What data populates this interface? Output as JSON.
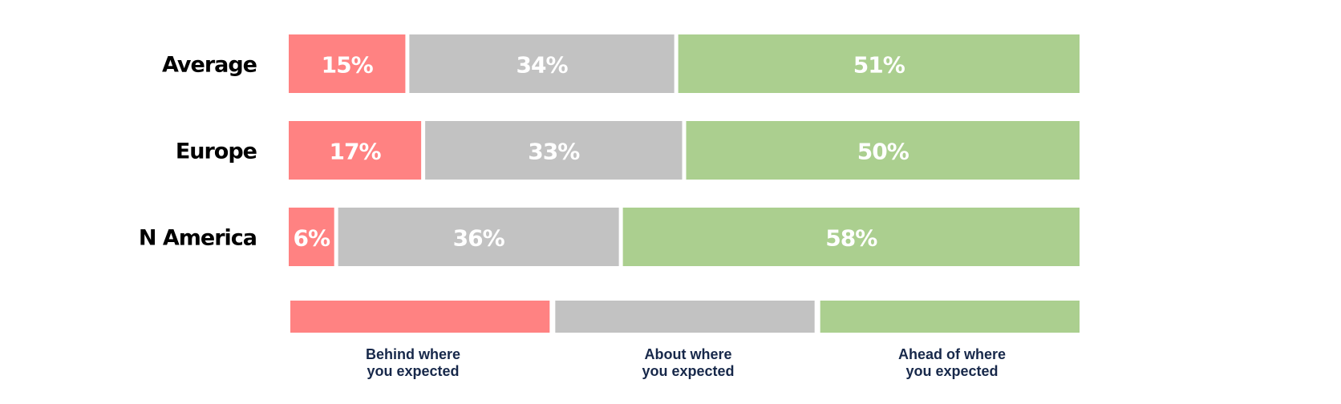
{
  "chart_data": {
    "type": "bar",
    "orientation": "horizontal",
    "stacked": true,
    "categories": [
      "Average",
      "Europe",
      "N America"
    ],
    "series": [
      {
        "name": "Behind where you expected",
        "values": [
          15,
          17,
          6
        ],
        "labels": [
          "15%",
          "17%",
          "6%"
        ],
        "color": "#ff8282"
      },
      {
        "name": "About where you expected",
        "values": [
          34,
          33,
          36
        ],
        "labels": [
          "34%",
          "33%",
          "36%"
        ],
        "color": "#c2c2c2"
      },
      {
        "name": "Ahead of where you expected",
        "values": [
          51,
          50,
          58
        ],
        "labels": [
          "51%",
          "50%",
          "58%"
        ],
        "color": "#abcf8f"
      }
    ],
    "xlim": [
      0,
      100
    ],
    "grid": false,
    "legend": {
      "position": "bottom",
      "entries": [
        {
          "lines": [
            "Behind where",
            "you expected"
          ],
          "color": "#ff8282"
        },
        {
          "lines": [
            "About where",
            "you expected"
          ],
          "color": "#c2c2c2"
        },
        {
          "lines": [
            "Ahead of where",
            "you expected"
          ],
          "color": "#abcf8f"
        }
      ]
    }
  }
}
